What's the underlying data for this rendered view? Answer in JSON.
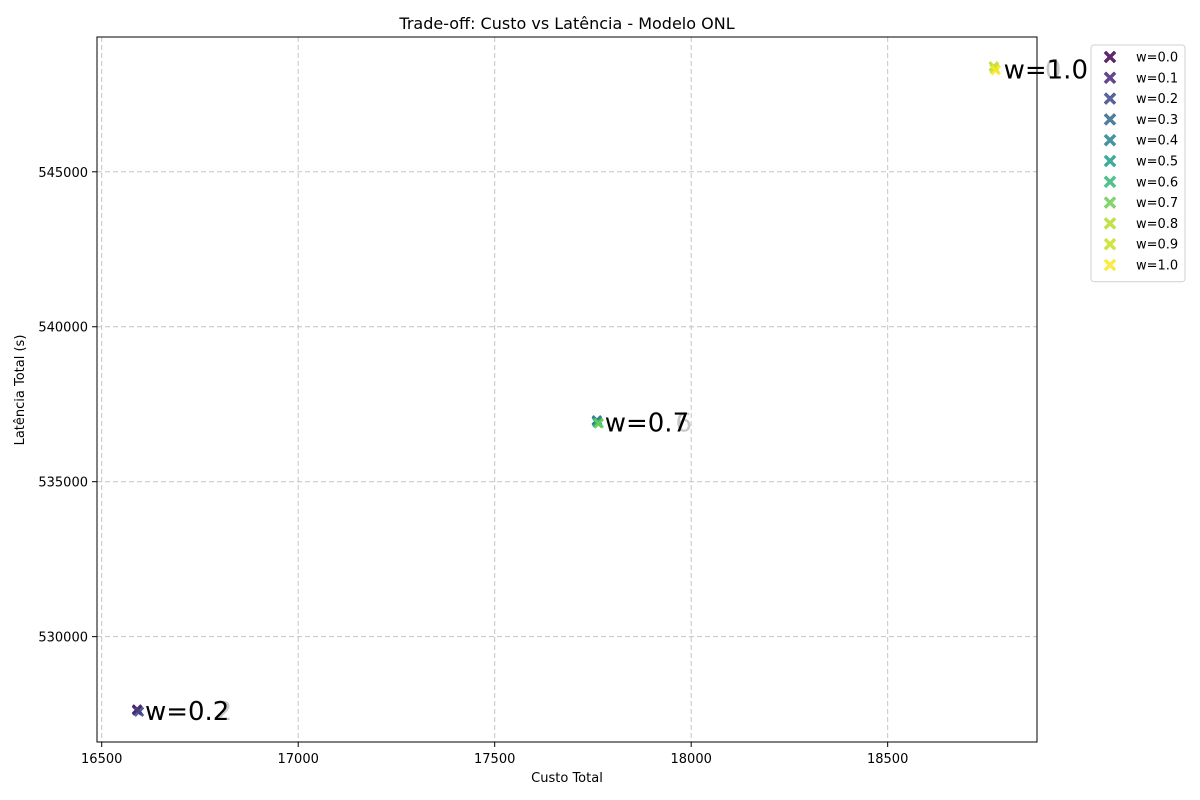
{
  "chart_data": {
    "type": "scatter",
    "title": "Trade-off: Custo vs Latência - Modelo ONL",
    "xlabel": "Custo Total",
    "ylabel": "Latência Total (s)",
    "xlim": [
      16488,
      18880
    ],
    "ylim": [
      526600,
      549350
    ],
    "xticks": [
      16500,
      17000,
      17500,
      18000,
      18500
    ],
    "yticks": [
      530000,
      535000,
      540000,
      545000
    ],
    "grid": true,
    "legend_position": "outside-top-right",
    "marker": "X",
    "series": [
      {
        "name": "w=0.0",
        "color": "#440154",
        "points": [
          [
            16590,
            527650
          ]
        ]
      },
      {
        "name": "w=0.1",
        "color": "#482878",
        "points": [
          [
            16590,
            527620
          ]
        ]
      },
      {
        "name": "w=0.2",
        "color": "#3e4989",
        "points": [
          [
            16595,
            527580
          ]
        ]
      },
      {
        "name": "w=0.3",
        "color": "#31688e",
        "points": [
          [
            17760,
            536980
          ]
        ]
      },
      {
        "name": "w=0.4",
        "color": "#26828e",
        "points": [
          [
            17760,
            536950
          ]
        ]
      },
      {
        "name": "w=0.5",
        "color": "#1f9e89",
        "points": [
          [
            17762,
            536920
          ]
        ]
      },
      {
        "name": "w=0.6",
        "color": "#35b779",
        "points": [
          [
            17762,
            536900
          ]
        ]
      },
      {
        "name": "w=0.7",
        "color": "#6ece58",
        "points": [
          [
            17765,
            536880
          ]
        ]
      },
      {
        "name": "w=0.8",
        "color": "#b5de2b",
        "points": [
          [
            18770,
            548400
          ]
        ]
      },
      {
        "name": "w=0.9",
        "color": "#c8e020",
        "points": [
          [
            18772,
            548330
          ]
        ]
      },
      {
        "name": "w=1.0",
        "color": "#fde725",
        "points": [
          [
            18775,
            548280
          ]
        ]
      }
    ],
    "annotations": [
      {
        "text": "w=0.2",
        "x": 16610,
        "y": 527700
      },
      {
        "text": "w=0.7",
        "x": 17780,
        "y": 537000
      },
      {
        "text": "w=1.0",
        "x": 18795,
        "y": 548400
      }
    ],
    "ghost_annotations": [
      {
        "text": "2",
        "x": 16790,
        "y": 527700
      },
      {
        "text": "6",
        "x": 17960,
        "y": 537000
      },
      {
        "text": "0",
        "x": 18900,
        "y": 548400
      }
    ]
  }
}
